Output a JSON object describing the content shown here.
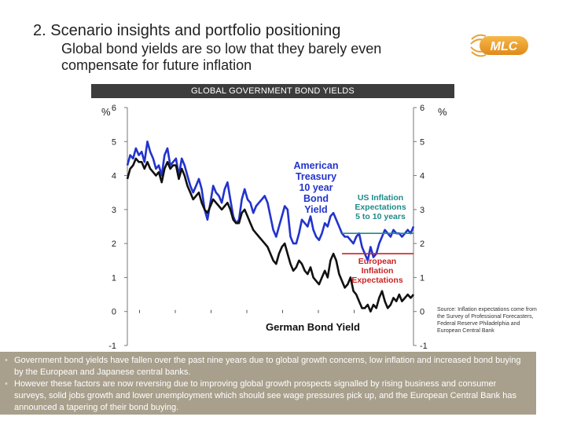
{
  "header": {
    "title": "2.  Scenario insights and portfolio positioning",
    "subtitle": "Global bond yields are so low that they barely even compensate for future inflation",
    "logo_text": "MLC"
  },
  "chart_data": {
    "type": "line",
    "title": "GLOBAL GOVERNMENT BOND YIELDS",
    "ylabel_left": "%",
    "ylabel_right": "%",
    "ylim": [
      -1,
      6
    ],
    "yticks": [
      -1,
      0,
      1,
      2,
      3,
      4,
      5,
      6
    ],
    "x_range": [
      0,
      100
    ],
    "grid": false,
    "series": [
      {
        "name": "American Treasury 10 year Bond Yield",
        "label_lines": [
          "American",
          "Treasury",
          "10 year",
          "Bond",
          "Yield"
        ],
        "color": "#2233cc",
        "x": [
          0,
          1,
          2,
          3,
          4,
          5,
          6,
          7,
          8,
          9,
          10,
          11,
          12,
          13,
          14,
          15,
          16,
          17,
          18,
          19,
          20,
          21,
          22,
          23,
          24,
          25,
          26,
          27,
          28,
          29,
          30,
          31,
          32,
          33,
          34,
          35,
          36,
          37,
          38,
          39,
          40,
          41,
          42,
          43,
          44,
          45,
          46,
          47,
          48,
          49,
          50,
          51,
          52,
          53,
          54,
          55,
          56,
          57,
          58,
          59,
          60,
          61,
          62,
          63,
          64,
          65,
          66,
          67,
          68,
          69,
          70,
          71,
          72,
          73,
          74,
          75,
          76,
          77,
          78,
          79,
          80,
          81,
          82,
          83,
          84,
          85,
          86,
          87,
          88,
          89,
          90,
          91,
          92,
          93,
          94,
          95,
          96,
          97,
          98,
          99,
          100
        ],
        "y": [
          4.3,
          4.6,
          4.5,
          4.8,
          4.6,
          4.7,
          4.4,
          5.0,
          4.7,
          4.5,
          4.2,
          4.3,
          4.0,
          4.6,
          4.8,
          4.3,
          4.4,
          4.5,
          4.0,
          4.5,
          4.3,
          4.0,
          3.7,
          3.5,
          3.7,
          3.9,
          3.6,
          3.0,
          2.7,
          3.2,
          3.7,
          3.5,
          3.4,
          3.2,
          3.6,
          3.8,
          3.3,
          2.8,
          2.6,
          2.7,
          3.3,
          3.6,
          3.3,
          3.2,
          2.9,
          3.1,
          3.2,
          3.3,
          3.4,
          3.2,
          2.8,
          2.4,
          2.2,
          2.5,
          2.8,
          3.1,
          3.0,
          2.2,
          2.0,
          2.0,
          2.3,
          2.7,
          2.6,
          2.5,
          2.8,
          2.4,
          2.2,
          2.1,
          2.3,
          2.6,
          2.5,
          2.8,
          2.9,
          2.7,
          2.5,
          2.3,
          2.2,
          2.2,
          2.1,
          2.0,
          2.2,
          2.3,
          1.9,
          1.7,
          1.5,
          1.9,
          1.6,
          1.7,
          2.0,
          2.2,
          2.4,
          2.3,
          2.2,
          2.4,
          2.3,
          2.3,
          2.2,
          2.3,
          2.4,
          2.3,
          2.5
        ]
      },
      {
        "name": "German Bond Yield",
        "label_lines": [
          "German Bond Yield"
        ],
        "color": "#111111",
        "x": [
          0,
          1,
          2,
          3,
          4,
          5,
          6,
          7,
          8,
          9,
          10,
          11,
          12,
          13,
          14,
          15,
          16,
          17,
          18,
          19,
          20,
          21,
          22,
          23,
          24,
          25,
          26,
          27,
          28,
          29,
          30,
          31,
          32,
          33,
          34,
          35,
          36,
          37,
          38,
          39,
          40,
          41,
          42,
          43,
          44,
          45,
          46,
          47,
          48,
          49,
          50,
          51,
          52,
          53,
          54,
          55,
          56,
          57,
          58,
          59,
          60,
          61,
          62,
          63,
          64,
          65,
          66,
          67,
          68,
          69,
          70,
          71,
          72,
          73,
          74,
          75,
          76,
          77,
          78,
          79,
          80,
          81,
          82,
          83,
          84,
          85,
          86,
          87,
          88,
          89,
          90,
          91,
          92,
          93,
          94,
          95,
          96,
          97,
          98,
          99,
          100
        ],
        "y": [
          3.9,
          4.2,
          4.3,
          4.5,
          4.4,
          4.4,
          4.2,
          4.4,
          4.2,
          4.1,
          4.0,
          4.1,
          3.8,
          4.2,
          4.4,
          4.2,
          4.3,
          4.3,
          3.9,
          4.2,
          4.0,
          3.7,
          3.5,
          3.3,
          3.4,
          3.5,
          3.2,
          3.0,
          2.9,
          3.1,
          3.3,
          3.2,
          3.1,
          3.0,
          3.1,
          3.2,
          3.0,
          2.7,
          2.6,
          2.6,
          2.9,
          3.0,
          2.8,
          2.6,
          2.4,
          2.3,
          2.2,
          2.1,
          2.0,
          1.9,
          1.7,
          1.5,
          1.4,
          1.7,
          1.9,
          2.0,
          1.7,
          1.4,
          1.2,
          1.3,
          1.5,
          1.4,
          1.2,
          1.1,
          1.3,
          1.0,
          0.9,
          0.8,
          1.0,
          1.2,
          1.0,
          1.5,
          1.7,
          1.5,
          1.1,
          0.9,
          0.7,
          0.8,
          1.0,
          0.6,
          0.5,
          0.3,
          0.1,
          0.1,
          0.2,
          0.0,
          0.2,
          0.1,
          0.4,
          0.6,
          0.3,
          0.1,
          0.2,
          0.4,
          0.3,
          0.5,
          0.3,
          0.4,
          0.5,
          0.4,
          0.5
        ]
      },
      {
        "name": "US Inflation Expectations 5 to 10 years",
        "label_lines": [
          "US Inflation",
          "Expectations",
          "5 to 10 years"
        ],
        "color": "#1f8a8a",
        "x": [
          75,
          100
        ],
        "y": [
          2.3,
          2.3
        ]
      },
      {
        "name": "European Inflation Expectations",
        "label_lines": [
          "European",
          "Inflation",
          "Expectations"
        ],
        "color": "#cc2222",
        "x": [
          75,
          100
        ],
        "y": [
          1.7,
          1.7
        ]
      }
    ]
  },
  "source": "Source: Inflation expectations come from the Survey of Professional Forecasters, Federal Reserve Philadelphia and European Central Bank",
  "notes": [
    "Government bond yields have fallen over the past nine years due to global growth concerns, low inflation and increased bond buying by the European and Japanese central banks.",
    "However these factors are now reversing due to improving global growth prospects signalled by rising business and consumer  surveys, solid jobs growth and lower unemployment which should see wage pressures pick up, and the European Central Bank has announced a tapering of  their bond buying."
  ],
  "bullet_glyph": "•"
}
